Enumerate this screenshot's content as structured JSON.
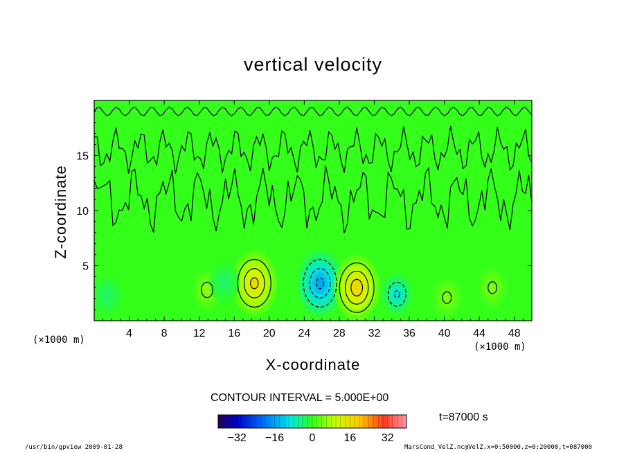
{
  "chart_data": {
    "type": "heatmap",
    "title": "vertical velocity",
    "xlabel": "X-coordinate",
    "ylabel": "Z-coordinate",
    "x_unit": "(×1000 m)",
    "x_ticks": [
      4,
      8,
      12,
      16,
      20,
      24,
      28,
      32,
      36,
      40,
      44,
      48
    ],
    "y_ticks": [
      5,
      10,
      15
    ],
    "xlim": [
      0,
      50
    ],
    "ylim": [
      0,
      20
    ],
    "contour_interval_label": "CONTOUR INTERVAL = 5.000E+00",
    "time_label": "t=87000 s",
    "colorbar": {
      "range": [
        -40,
        40
      ],
      "ticks": [
        -32,
        -16,
        0,
        16,
        32
      ],
      "tick_labels": [
        "−32",
        "−16",
        "0",
        "16",
        "32"
      ]
    },
    "features": [
      {
        "name": "updraft",
        "x": 18.3,
        "z": 3.4,
        "peak": 16
      },
      {
        "name": "downdraft",
        "x": 25.8,
        "z": 3.4,
        "peak": -16
      },
      {
        "name": "updraft",
        "x": 30.0,
        "z": 3.0,
        "peak": 18
      },
      {
        "name": "downdraft",
        "x": 34.6,
        "z": 2.4,
        "peak": -10
      },
      {
        "name": "updraft",
        "x": 12.9,
        "z": 2.8,
        "peak": 6
      },
      {
        "name": "updraft",
        "x": 45.5,
        "z": 3.0,
        "peak": 5
      },
      {
        "name": "updraft",
        "x": 40.3,
        "z": 2.1,
        "peak": 5
      },
      {
        "name": "downdraft",
        "x": 1.5,
        "z": 2.3,
        "peak": -4
      },
      {
        "name": "downdraft",
        "x": 14.9,
        "z": 3.5,
        "peak": -4
      }
    ],
    "grid": false
  },
  "colors": {
    "background": "#ffffff",
    "field_base": "#33ff1a",
    "contour": "#000000"
  },
  "footer": {
    "left": "/usr/bin/gpview   2009-01-28",
    "right": "MarsCond_VelZ.nc@VelZ,x=0:50000,z=0:20000,t=087000"
  }
}
